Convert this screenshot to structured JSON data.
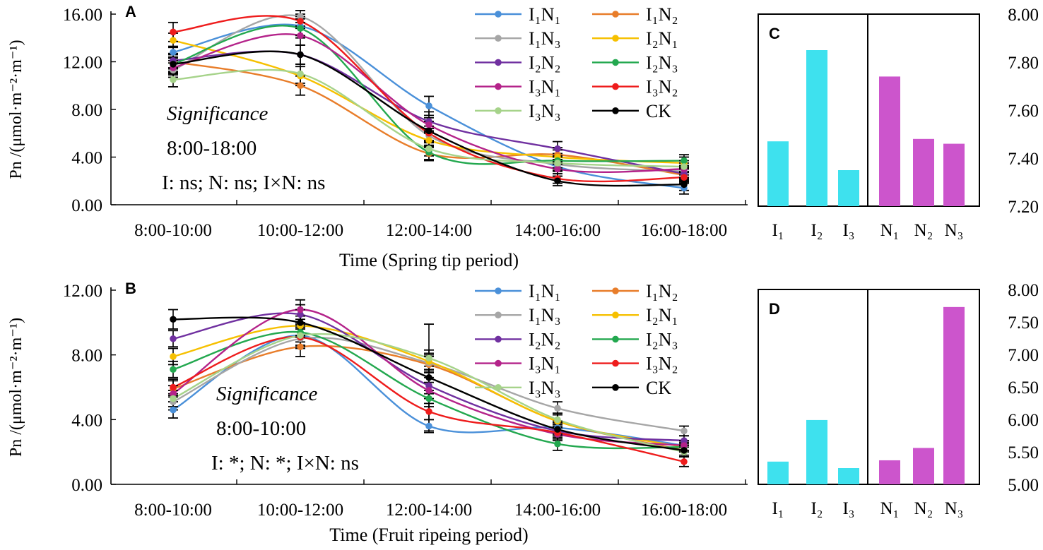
{
  "chart_data": [
    {
      "panel": "A",
      "type": "line",
      "title": "",
      "xlabel": "Time  (Spring tip period)",
      "ylabel": "Pn  /(μmol·m⁻²·m⁻¹)",
      "categories": [
        "8:00-10:00",
        "10:00-12:00",
        "12:00-14:00",
        "14:00-16:00",
        "16:00-18:00"
      ],
      "ylim": [
        0,
        16
      ],
      "yticks": [
        "0.00",
        "4.00",
        "8.00",
        "12.00",
        "16.00"
      ],
      "series": [
        {
          "name": "I₁N₁",
          "color": "#4a90d9",
          "values": [
            12.8,
            15.0,
            8.3,
            3.2,
            1.4
          ],
          "err": [
            0.5,
            0.8,
            0.8,
            0.6,
            0.5
          ]
        },
        {
          "name": "I₁N₂",
          "color": "#e87d2a",
          "values": [
            12.0,
            10.0,
            4.3,
            4.2,
            2.5
          ],
          "err": [
            0.6,
            0.8,
            0.6,
            0.6,
            0.5
          ]
        },
        {
          "name": "I₁N₃",
          "color": "#a6a6a6",
          "values": [
            11.3,
            15.8,
            5.8,
            3.4,
            2.8
          ],
          "err": [
            0.6,
            0.5,
            0.6,
            0.6,
            0.5
          ]
        },
        {
          "name": "I₂N₁",
          "color": "#f6c000",
          "values": [
            13.8,
            10.8,
            5.4,
            4.0,
            3.5
          ],
          "err": [
            0.6,
            0.8,
            0.6,
            0.6,
            0.5
          ]
        },
        {
          "name": "I₂N₂",
          "color": "#7030a0",
          "values": [
            12.1,
            12.6,
            7.0,
            4.7,
            2.6
          ],
          "err": [
            0.6,
            0.8,
            0.8,
            0.6,
            0.5
          ]
        },
        {
          "name": "I₂N₃",
          "color": "#23a84f",
          "values": [
            11.8,
            14.8,
            4.4,
            3.7,
            3.7
          ],
          "err": [
            0.6,
            0.8,
            0.6,
            0.6,
            0.5
          ]
        },
        {
          "name": "I₃N₁",
          "color": "#b4238a",
          "values": [
            11.5,
            14.2,
            6.7,
            3.0,
            3.0
          ],
          "err": [
            0.6,
            0.8,
            0.6,
            0.6,
            0.5
          ]
        },
        {
          "name": "I₃N₂",
          "color": "#ee1c1c",
          "values": [
            14.5,
            15.4,
            6.0,
            2.2,
            2.3
          ],
          "err": [
            0.8,
            0.6,
            0.6,
            0.4,
            0.5
          ]
        },
        {
          "name": "I₃N₃",
          "color": "#a6d38a",
          "values": [
            10.5,
            11.0,
            4.7,
            3.5,
            3.2
          ],
          "err": [
            0.6,
            0.8,
            0.6,
            0.6,
            0.5
          ]
        },
        {
          "name": "CK",
          "color": "#000000",
          "values": [
            11.8,
            12.6,
            6.2,
            2.0,
            1.7
          ],
          "err": [
            0.8,
            0.8,
            0.8,
            0.4,
            0.5
          ]
        }
      ],
      "annotation": [
        "Significance",
        "8:00-18:00",
        "I: ns; N: ns; I×N: ns"
      ]
    },
    {
      "panel": "B",
      "type": "line",
      "title": "",
      "xlabel": "Time (Fruit ripeing period)",
      "ylabel": "Pn  /(μmol·m⁻²·m⁻¹)",
      "categories": [
        "8:00-10:00",
        "10:00-12:00",
        "12:00-14:00",
        "14:00-16:00",
        "16:00-18:00"
      ],
      "ylim": [
        0,
        12
      ],
      "yticks": [
        "0.00",
        "4.00",
        "8.00",
        "12.00"
      ],
      "series": [
        {
          "name": "I₁N₁",
          "color": "#4a90d9",
          "values": [
            4.6,
            9.2,
            3.6,
            3.5,
            2.4
          ],
          "err": [
            0.5,
            0.6,
            0.4,
            0.4,
            0.3
          ]
        },
        {
          "name": "I₁N₂",
          "color": "#e87d2a",
          "values": [
            5.9,
            8.5,
            7.4,
            3.9,
            2.1
          ],
          "err": [
            0.5,
            0.6,
            0.5,
            0.4,
            0.3
          ]
        },
        {
          "name": "I₁N₃",
          "color": "#a6a6a6",
          "values": [
            5.1,
            9.0,
            7.5,
            4.7,
            3.3
          ],
          "err": [
            0.5,
            0.6,
            0.5,
            0.4,
            0.3
          ]
        },
        {
          "name": "I₂N₁",
          "color": "#f6c000",
          "values": [
            7.9,
            9.8,
            7.6,
            3.9,
            2.3
          ],
          "err": [
            0.5,
            0.6,
            0.5,
            0.4,
            0.3
          ]
        },
        {
          "name": "I₂N₂",
          "color": "#7030a0",
          "values": [
            9.0,
            10.5,
            6.1,
            3.3,
            2.7
          ],
          "err": [
            0.5,
            0.6,
            0.5,
            0.4,
            0.3
          ]
        },
        {
          "name": "I₂N₃",
          "color": "#23a84f",
          "values": [
            7.1,
            9.4,
            5.3,
            2.5,
            2.3
          ],
          "err": [
            0.5,
            0.6,
            0.5,
            0.4,
            0.3
          ]
        },
        {
          "name": "I₃N₁",
          "color": "#b4238a",
          "values": [
            5.6,
            10.8,
            5.8,
            3.1,
            2.4
          ],
          "err": [
            0.5,
            0.6,
            0.5,
            0.4,
            0.3
          ]
        },
        {
          "name": "I₃N₂",
          "color": "#ee1c1c",
          "values": [
            6.0,
            9.1,
            4.5,
            3.2,
            1.4
          ],
          "err": [
            0.5,
            0.6,
            0.5,
            0.4,
            0.3
          ]
        },
        {
          "name": "I₃N₃",
          "color": "#a6d38a",
          "values": [
            5.3,
            9.2,
            7.8,
            4.0,
            2.0
          ],
          "err": [
            0.5,
            0.6,
            0.5,
            0.4,
            0.3
          ]
        },
        {
          "name": "CK",
          "color": "#000000",
          "values": [
            10.2,
            10.0,
            6.6,
            3.4,
            2.1
          ],
          "err": [
            0.6,
            0.8,
            3.3,
            0.4,
            0.4
          ]
        }
      ],
      "annotation": [
        "Significance",
        "8:00-10:00",
        "I: *; N: *; I×N: ns"
      ]
    },
    {
      "panel": "C",
      "type": "bar",
      "categories": [
        "I₁",
        "I₂",
        "I₃",
        "N₁",
        "N₂",
        "N₃"
      ],
      "values": [
        7.47,
        7.85,
        7.35,
        7.74,
        7.48,
        7.46
      ],
      "colors": [
        "#3ee1ee",
        "#3ee1ee",
        "#3ee1ee",
        "#cc55cc",
        "#cc55cc",
        "#cc55cc"
      ],
      "ylim": [
        7.2,
        8.0
      ],
      "yticks": [
        "7.20",
        "7.40",
        "7.60",
        "7.80",
        "8.00"
      ],
      "y_axis_side": "right"
    },
    {
      "panel": "D",
      "type": "bar",
      "categories": [
        "I₁",
        "I₂",
        "I₃",
        "N₁",
        "N₂",
        "N₃"
      ],
      "values": [
        5.35,
        5.99,
        5.25,
        5.37,
        5.56,
        7.73
      ],
      "colors": [
        "#3ee1ee",
        "#3ee1ee",
        "#3ee1ee",
        "#cc55cc",
        "#cc55cc",
        "#cc55cc"
      ],
      "ylim": [
        5.0,
        8.0
      ],
      "yticks": [
        "5.00",
        "5.50",
        "6.00",
        "6.50",
        "7.00",
        "7.50",
        "8.00"
      ],
      "y_axis_side": "right"
    }
  ]
}
